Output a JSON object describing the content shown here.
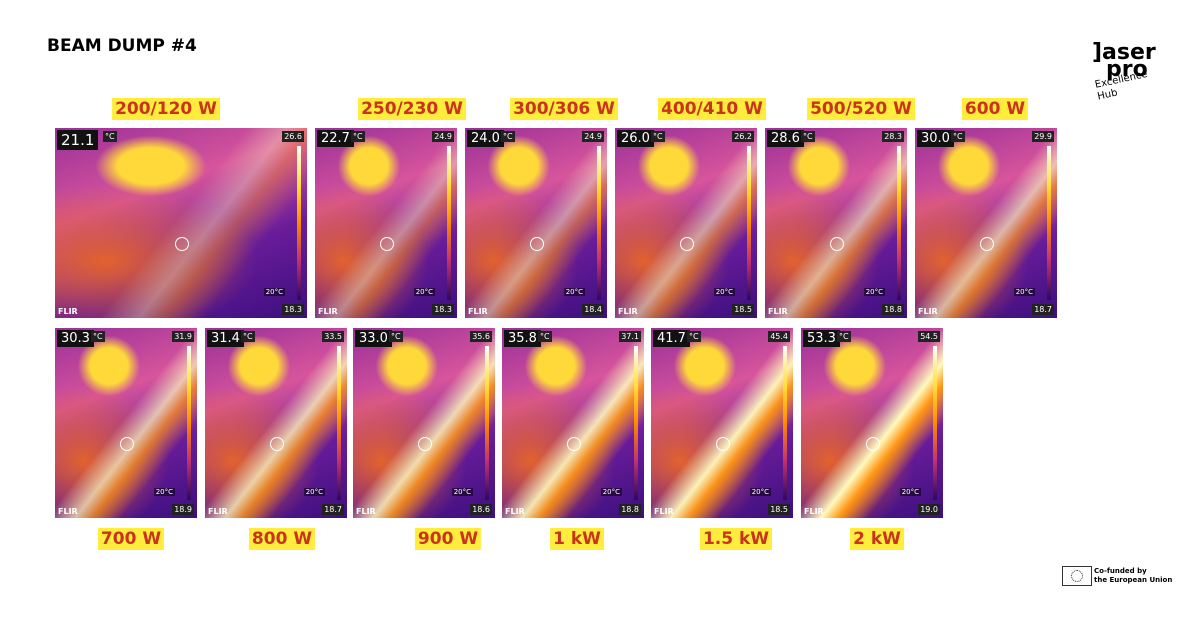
{
  "header": {
    "title": "BEAM DUMP #4"
  },
  "logo": {
    "line1": "]aser",
    "line2": "pro",
    "tagline1": "Excellence",
    "tagline2": "Hub"
  },
  "thermal": {
    "unit": "°C",
    "reference": "20°C",
    "brand": "FLIR"
  },
  "panels": [
    {
      "label": "200/120 W",
      "reading": "21.1",
      "max": "26.6",
      "min": "18.3"
    },
    {
      "label": "250/230 W",
      "reading": "22.7",
      "max": "24.9",
      "min": "18.3"
    },
    {
      "label": "300/306 W",
      "reading": "24.0",
      "max": "24.9",
      "min": "18.4"
    },
    {
      "label": "400/410 W",
      "reading": "26.0",
      "max": "26.2",
      "min": "18.5"
    },
    {
      "label": "500/520 W",
      "reading": "28.6",
      "max": "28.3",
      "min": "18.8"
    },
    {
      "label": "600 W",
      "reading": "30.0",
      "max": "29.9",
      "min": "18.7"
    },
    {
      "label": "700 W",
      "reading": "30.3",
      "max": "31.9",
      "min": "18.9"
    },
    {
      "label": "800 W",
      "reading": "31.4",
      "max": "33.5",
      "min": "18.7"
    },
    {
      "label": "900 W",
      "reading": "33.0",
      "max": "35.6",
      "min": "18.6"
    },
    {
      "label": "1 kW",
      "reading": "35.8",
      "max": "37.1",
      "min": "18.8"
    },
    {
      "label": "1.5 kW",
      "reading": "41.7",
      "max": "45.4",
      "min": "18.5"
    },
    {
      "label": "2 kW",
      "reading": "53.3",
      "max": "54.5",
      "min": "19.0"
    }
  ],
  "footer": {
    "eu_line1": "Co-funded by",
    "eu_line2": "the European Union"
  }
}
